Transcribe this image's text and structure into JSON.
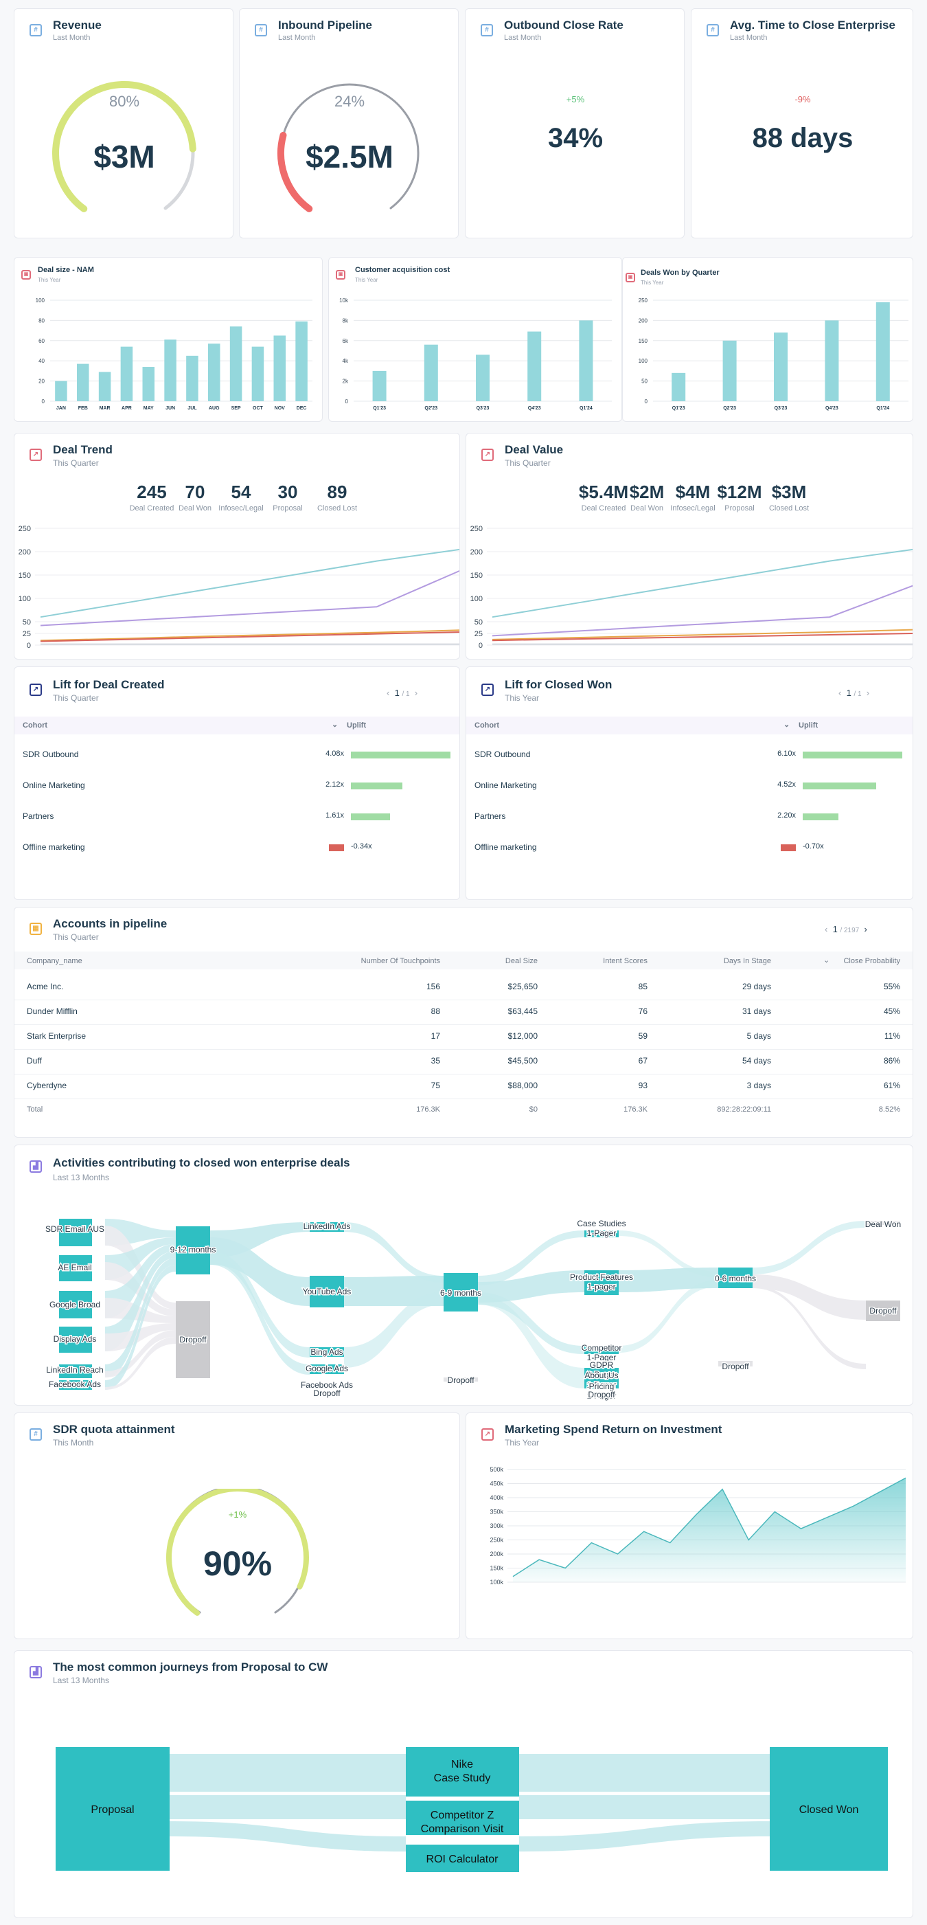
{
  "kpis": [
    {
      "title": "Revenue",
      "period": "Last Month",
      "value": "$3M",
      "percent": "80%",
      "fraction": 0.8
    },
    {
      "title": "Inbound Pipeline",
      "period": "Last Month",
      "value": "$2.5M",
      "percent": "24%",
      "fraction": 0.24
    },
    {
      "title": "Outbound Close Rate",
      "period": "Last Month",
      "value": "34%",
      "delta": "+5%"
    },
    {
      "title": "Avg. Time to Close Enterprise",
      "period": "Last Month",
      "value": "88 days",
      "delta": "-9%"
    }
  ],
  "colors": {
    "teal": "#2fbfc2",
    "bar": "#94d7dc",
    "green": "#a0dca4",
    "red": "#d9625a",
    "gauge_green": "#d6e57c",
    "gauge_red": "#ef6b6b"
  },
  "small_charts": {
    "deal_size": {
      "title": "Deal size - NAM",
      "period": "This Year"
    },
    "cac": {
      "title": "Customer acquisition cost",
      "period": "This Year"
    },
    "deals_won": {
      "title": "Deals Won by Quarter",
      "period": "This Year"
    }
  },
  "chart_data": [
    {
      "type": "bar",
      "title": "Deal size - NAM",
      "categories": [
        "JAN",
        "FEB",
        "MAR",
        "APR",
        "MAY",
        "JUN",
        "JUL",
        "AUG",
        "SEP",
        "OCT",
        "NOV",
        "DEC"
      ],
      "values": [
        20,
        37,
        29,
        54,
        34,
        61,
        45,
        57,
        74,
        54,
        65,
        79
      ],
      "ylim": [
        0,
        100
      ],
      "yticks": [
        "0",
        "20",
        "40",
        "60",
        "80",
        "100"
      ]
    },
    {
      "type": "bar",
      "title": "Customer acquisition cost",
      "categories": [
        "Q1'23",
        "Q2'23",
        "Q3'23",
        "Q4'23",
        "Q1'24"
      ],
      "values": [
        3000,
        5600,
        4600,
        6900,
        8000
      ],
      "ylim": [
        0,
        10000
      ],
      "yticks": [
        "0",
        "2k",
        "4k",
        "6k",
        "8k",
        "10k"
      ]
    },
    {
      "type": "bar",
      "title": "Deals Won by Quarter",
      "categories": [
        "Q1'23",
        "Q2'23",
        "Q3'23",
        "Q4'23",
        "Q1'24"
      ],
      "values": [
        70,
        150,
        170,
        200,
        245
      ],
      "ylim": [
        0,
        250
      ],
      "yticks": [
        "0",
        "50",
        "100",
        "150",
        "200",
        "250"
      ]
    },
    {
      "type": "line",
      "title": "Deal Trend",
      "ylim": [
        0,
        250
      ],
      "yticks": [
        "0",
        "25",
        "50",
        "100",
        "150",
        "200",
        "250"
      ],
      "series": [
        {
          "color": "#8fcfd6",
          "values": [
            60,
            90,
            120,
            150,
            180,
            205
          ]
        },
        {
          "color": "#b39be0",
          "values": [
            42,
            52,
            62,
            72,
            82,
            160
          ]
        },
        {
          "color": "#e8a84a",
          "values": [
            10,
            14,
            19,
            23,
            27,
            32
          ]
        },
        {
          "color": "#d9625a",
          "values": [
            8,
            12,
            16,
            20,
            24,
            28
          ]
        },
        {
          "color": "#d4d8de",
          "values": [
            2,
            2,
            2,
            2,
            2,
            2
          ]
        }
      ]
    },
    {
      "type": "line",
      "title": "Deal Value",
      "ylim": [
        0,
        250
      ],
      "yticks": [
        "0",
        "25",
        "50",
        "100",
        "150",
        "200",
        "250"
      ],
      "series": [
        {
          "color": "#8fcfd6",
          "values": [
            60,
            90,
            120,
            150,
            180,
            205
          ]
        },
        {
          "color": "#b39be0",
          "values": [
            20,
            30,
            40,
            50,
            60,
            128
          ]
        },
        {
          "color": "#e8a84a",
          "values": [
            12,
            16,
            20,
            24,
            28,
            33
          ]
        },
        {
          "color": "#d9625a",
          "values": [
            10,
            13,
            16,
            19,
            22,
            25
          ]
        },
        {
          "color": "#d4d8de",
          "values": [
            2,
            2,
            2,
            2,
            2,
            2
          ]
        }
      ]
    },
    {
      "type": "area",
      "title": "Marketing Spend Return on Investment",
      "yticks": [
        "100k",
        "150k",
        "200k",
        "250k",
        "300k",
        "350k",
        "400k",
        "450k",
        "500k"
      ],
      "ylim": [
        100000,
        500000
      ],
      "values": [
        120000,
        180000,
        150000,
        240000,
        200000,
        280000,
        240000,
        340000,
        430000,
        250000,
        350000,
        290000,
        330000,
        370000,
        420000,
        470000
      ]
    }
  ],
  "deal_trend": {
    "title": "Deal Trend",
    "period": "This Quarter",
    "stats": [
      {
        "v": "245",
        "l": "Deal Created"
      },
      {
        "v": "70",
        "l": "Deal Won"
      },
      {
        "v": "54",
        "l": "Infosec/Legal"
      },
      {
        "v": "30",
        "l": "Proposal"
      },
      {
        "v": "89",
        "l": "Closed Lost"
      }
    ]
  },
  "deal_value": {
    "title": "Deal Value",
    "period": "This Quarter",
    "stats": [
      {
        "v": "$5.4M",
        "l": "Deal Created"
      },
      {
        "v": "$2M",
        "l": "Deal Won"
      },
      {
        "v": "$4M",
        "l": "Infosec/Legal"
      },
      {
        "v": "$12M",
        "l": "Proposal"
      },
      {
        "v": "$3M",
        "l": "Closed Lost"
      }
    ]
  },
  "lift_created": {
    "title": "Lift for Deal Created",
    "period": "This Quarter",
    "page": "1",
    "pages": "/ 1",
    "col1": "Cohort",
    "col2": "Uplift",
    "rows": [
      {
        "name": "SDR Outbound",
        "val": "4.08x",
        "n": 4.08
      },
      {
        "name": "Online Marketing",
        "val": "2.12x",
        "n": 2.12
      },
      {
        "name": "Partners",
        "val": "1.61x",
        "n": 1.61
      },
      {
        "name": "Offline marketing",
        "val": "-0.34x",
        "n": -0.34
      }
    ]
  },
  "lift_won": {
    "title": "Lift for Closed Won",
    "period": "This Year",
    "page": "1",
    "pages": "/ 1",
    "col1": "Cohort",
    "col2": "Uplift",
    "rows": [
      {
        "name": "SDR Outbound",
        "val": "6.10x",
        "n": 6.1
      },
      {
        "name": "Online Marketing",
        "val": "4.52x",
        "n": 4.52
      },
      {
        "name": "Partners",
        "val": "2.20x",
        "n": 2.2
      },
      {
        "name": "Offline marketing",
        "val": "-0.70x",
        "n": -0.7
      }
    ]
  },
  "accounts": {
    "title": "Accounts in pipeline",
    "period": "This Quarter",
    "page": "1",
    "pages": "/ 2197",
    "headers": [
      "Company_name",
      "Number Of Touchpoints",
      "Deal Size",
      "Intent Scores",
      "Days In Stage",
      "Close Probability"
    ],
    "rows": [
      [
        "Acme Inc.",
        "156",
        "$25,650",
        "85",
        "29 days",
        "55%"
      ],
      [
        "Dunder Mifflin",
        "88",
        "$63,445",
        "76",
        "31 days",
        "45%"
      ],
      [
        "Stark Enterprise",
        "17",
        "$12,000",
        "59",
        "5 days",
        "11%"
      ],
      [
        "Duff",
        "35",
        "$45,500",
        "67",
        "54 days",
        "86%"
      ],
      [
        "Cyberdyne",
        "75",
        "$88,000",
        "93",
        "3 days",
        "61%"
      ]
    ],
    "total": [
      "Total",
      "176.3K",
      "$0",
      "176.3K",
      "892:28:22:09:11",
      "8.52%"
    ]
  },
  "activities": {
    "title": "Activities contributing to closed won enterprise deals",
    "period": "Last 13 Months",
    "sources": [
      "SDR Email AUS",
      "AE Email",
      "Google Broad",
      "Display Ads",
      "LinkedIn Reach",
      "Facebook Ads"
    ],
    "stage1": [
      "9-12 months",
      "Dropoff"
    ],
    "channels": [
      "LinkedIn Ads",
      "YouTube Ads",
      "Bing Ads",
      "Google Ads",
      "Facebook Ads",
      "Dropoff"
    ],
    "stage2": [
      "6-9 months",
      "Dropoff"
    ],
    "content": [
      "Case Studies 1-Pager",
      "Product Features 1-pager",
      "Competitor 1-Pager",
      "GDPR 1-Pager",
      "About Us 1-Pager",
      "Pricing 1-Pager",
      "Dropoff"
    ],
    "stage3": [
      "0-6 months",
      "Dropoff"
    ],
    "outcome": [
      "Deal Won",
      "Dropoff"
    ]
  },
  "sdr": {
    "title": "SDR quota attainment",
    "period": "This Month",
    "value": "90%",
    "delta": "+1%",
    "fraction": 0.9
  },
  "roi": {
    "title": "Marketing Spend Return on Investment",
    "period": "This Year"
  },
  "journeys": {
    "title": "The most common journeys from Proposal to CW",
    "period": "Last 13 Months",
    "start": "Proposal",
    "end": "Closed Won",
    "steps": [
      "Nike\nCase Study",
      "Competitor Z\nComparison Visit",
      "ROI Calculator"
    ]
  }
}
